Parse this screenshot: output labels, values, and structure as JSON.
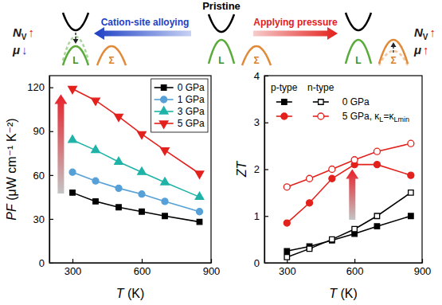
{
  "diagram": {
    "title": "Pristine",
    "left_arrow": "Cation-site alloying",
    "right_arrow": "Applying pressure",
    "band_labels": [
      "L",
      "Σ"
    ],
    "left_effects": [
      {
        "symbol": "N",
        "sub": "V",
        "change": "↑"
      },
      {
        "symbol": "μ",
        "change": "↓"
      }
    ],
    "right_effects": [
      {
        "symbol": "N",
        "sub": "V",
        "change": "↑"
      },
      {
        "symbol": "μ",
        "change": "↑"
      }
    ]
  },
  "chart_data": [
    {
      "type": "line",
      "xlabel": "T (K)",
      "ylabel": "PF (μW cm⁻¹ K⁻²)",
      "x": [
        300,
        400,
        500,
        600,
        700,
        850
      ],
      "xlim": [
        200,
        900
      ],
      "xticks": [
        300,
        600,
        900
      ],
      "ylim": [
        0,
        128
      ],
      "yticks": [
        0,
        30,
        60,
        90,
        120
      ],
      "legend": "upper right",
      "series": [
        {
          "name": "0 GPa",
          "color": "#000000",
          "marker": "square",
          "values": [
            48,
            42,
            38,
            35,
            32,
            28
          ]
        },
        {
          "name": "1 GPa",
          "color": "#56a0d8",
          "marker": "circle",
          "values": [
            62,
            56,
            51,
            47,
            42,
            35
          ]
        },
        {
          "name": "3 GPa",
          "color": "#1fb3a8",
          "marker": "triangle-up",
          "values": [
            84,
            77,
            69,
            62,
            55,
            45
          ]
        },
        {
          "name": "5 GPa",
          "color": "#e3211c",
          "marker": "triangle-down",
          "values": [
            119,
            111,
            100,
            88,
            77,
            61
          ]
        }
      ]
    },
    {
      "type": "line",
      "xlabel": "T (K)",
      "ylabel": "ZT",
      "x": [
        300,
        400,
        500,
        600,
        700,
        850
      ],
      "xlim": [
        200,
        900
      ],
      "xticks": [
        300,
        600,
        900
      ],
      "ylim": [
        0,
        4
      ],
      "yticks": [
        0,
        1,
        2,
        3,
        4
      ],
      "legend": "upper left",
      "legend_header": [
        "p-type",
        "n-type"
      ],
      "series": [
        {
          "name": "0 GPa",
          "color": "#000000",
          "marker": "square",
          "values": [
            0.25,
            0.35,
            0.48,
            0.62,
            0.78,
            1.0
          ]
        },
        {
          "name": "0 GPa",
          "color": "#000000",
          "marker": "square-open",
          "values": [
            0.12,
            0.3,
            0.5,
            0.72,
            1.0,
            1.5
          ]
        },
        {
          "name": "5 GPa, κL=κLmin",
          "color": "#e3211c",
          "marker": "circle",
          "values": [
            0.85,
            1.28,
            1.8,
            2.1,
            2.1,
            1.87
          ]
        },
        {
          "name": "5 GPa, κL=κLmin",
          "color": "#e3211c",
          "marker": "circle-open",
          "values": [
            1.62,
            1.8,
            2.0,
            2.2,
            2.38,
            2.55
          ]
        }
      ]
    }
  ]
}
